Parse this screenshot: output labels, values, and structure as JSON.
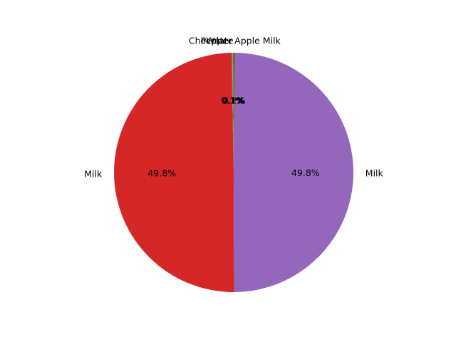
{
  "chart_data": {
    "type": "pie",
    "title": "",
    "start_angle_deg": 90,
    "direction": "counterclockwise",
    "slices": [
      {
        "label": "Chocolate",
        "value": 0.1,
        "pct_label": "0.1%",
        "color": "#1f77b4"
      },
      {
        "label": "Water",
        "value": 0.1,
        "pct_label": "0.1%",
        "color": "#ff7f0e"
      },
      {
        "label": "Pepper",
        "value": 0.1,
        "pct_label": "0.1%",
        "color": "#2ca02c"
      },
      {
        "label": "Milk",
        "value": 49.8,
        "pct_label": "49.8%",
        "color": "#d62728"
      },
      {
        "label": "Milk",
        "value": 49.8,
        "pct_label": "49.8%",
        "color": "#9467bd"
      },
      {
        "label": "Apple Milk",
        "value": 0.2,
        "pct_label": "0.2%",
        "color": "#8c564b"
      }
    ]
  }
}
